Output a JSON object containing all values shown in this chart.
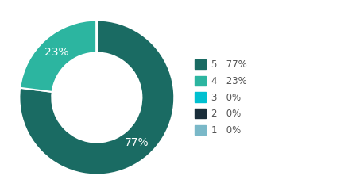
{
  "labels": [
    "5",
    "4",
    "3",
    "2",
    "1"
  ],
  "values": [
    77,
    23,
    0,
    0,
    0
  ],
  "display_values": [
    "77%",
    "23%",
    "0%",
    "0%",
    "0%"
  ],
  "colors": [
    "#1a6b63",
    "#2cb5a0",
    "#00c0d0",
    "#1a2e3a",
    "#7ab8c8"
  ],
  "legend_labels": [
    "5   77%",
    "4   23%",
    "3   0%",
    "2   0%",
    "1   0%"
  ],
  "background_color": "#ffffff",
  "wedge_text_color": "#ffffff",
  "wedge_text_fontsize": 10,
  "donut_width": 0.42
}
